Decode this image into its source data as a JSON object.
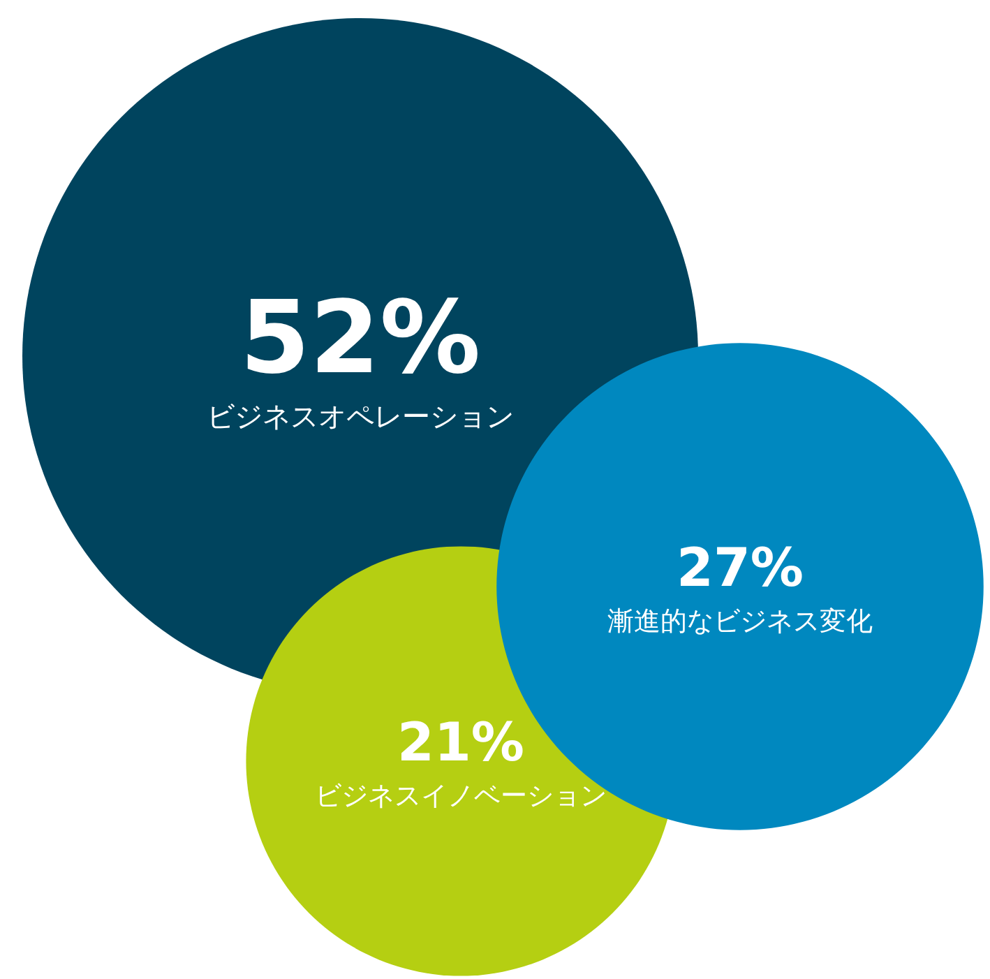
{
  "chart_data": {
    "type": "other",
    "categories": [
      "ビジネスオペレーション",
      "漸進的なビジネス変化",
      "ビジネスイノベーション"
    ],
    "values": [
      52,
      27,
      21
    ],
    "value_labels": [
      "52%",
      "27%",
      "21%"
    ],
    "colors": [
      "#00445e",
      "#0088bf",
      "#b5cf12"
    ]
  }
}
